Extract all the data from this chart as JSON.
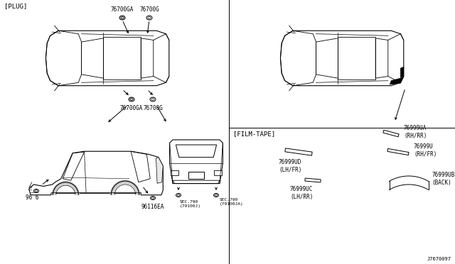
{
  "bg": "#ffffff",
  "lc": "#000000",
  "gray": "#aaaaaa",
  "labels": {
    "plug": "[PLUG]",
    "film_tape": "[FILM-TAPE]",
    "p76700ga": "76700GA",
    "p76700g": "76700G",
    "p96116": "96116EA",
    "p9616": "96 6",
    "sec790j": "SEC.790\n(79100J)",
    "sec790ja": "SEC.790\n(79100JA)",
    "p76999ua": "76999UA\n(RH/RR)",
    "p76999u": "76999U\n(RH/FR)",
    "p76999ud": "76999UD\n(LH/FR)",
    "p76999uc": "76999UC\n(LH/RR)",
    "p76999ub": "76999UB\n(BACK)",
    "diag": "J7670097"
  },
  "fs": 5.5,
  "fs_bracket": 6.5
}
